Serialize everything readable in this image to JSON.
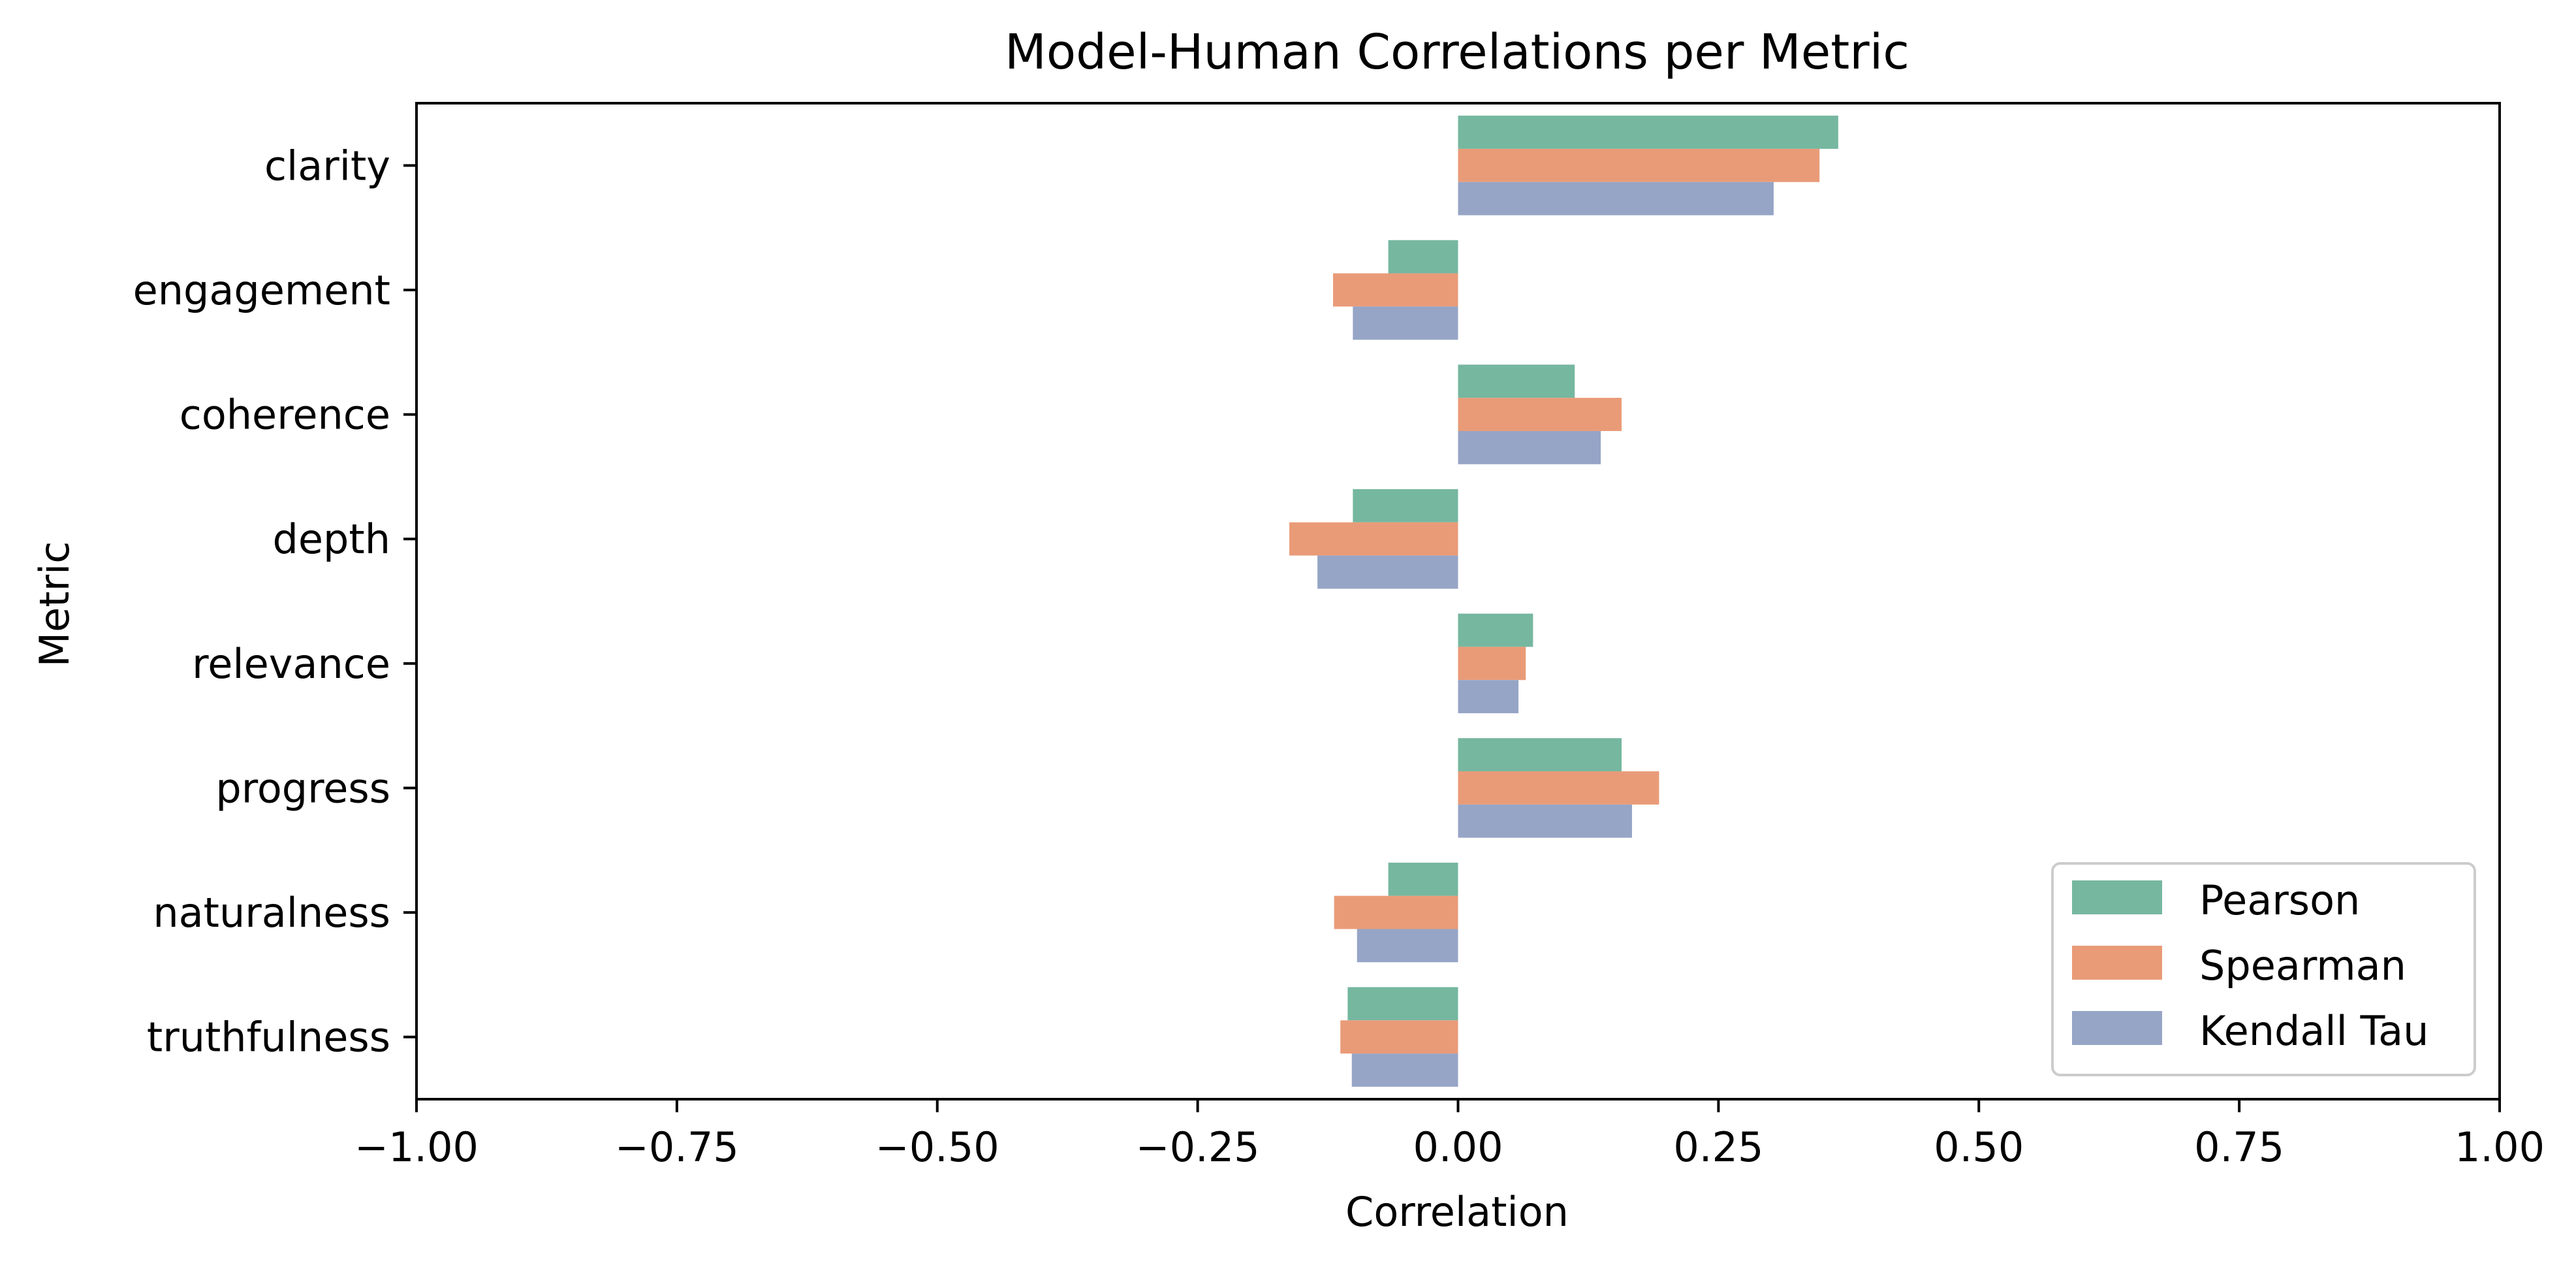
{
  "chart_data": {
    "type": "bar",
    "orientation": "horizontal",
    "title": "Model-Human Correlations per Metric",
    "xlabel": "Correlation",
    "ylabel": "Metric",
    "xlim": [
      -1.0,
      1.0
    ],
    "xticks": [
      "−1.00",
      "−0.75",
      "−0.50",
      "−0.25",
      "0.00",
      "0.25",
      "0.50",
      "0.75",
      "1.00"
    ],
    "xtick_values": [
      -1.0,
      -0.75,
      -0.5,
      -0.25,
      0.0,
      0.25,
      0.5,
      0.75,
      1.0
    ],
    "grid": false,
    "legend_position": "bottom-right",
    "categories": [
      "clarity",
      "engagement",
      "coherence",
      "depth",
      "relevance",
      "progress",
      "naturalness",
      "truthfulness"
    ],
    "series": [
      {
        "name": "Pearson",
        "color": "#76b7a0",
        "values": [
          0.365,
          -0.067,
          0.112,
          -0.101,
          0.072,
          0.157,
          -0.067,
          -0.106
        ]
      },
      {
        "name": "Spearman",
        "color": "#e99b78",
        "values": [
          0.347,
          -0.12,
          0.157,
          -0.162,
          0.065,
          0.193,
          -0.119,
          -0.113
        ]
      },
      {
        "name": "Kendall Tau",
        "color": "#96a5c6",
        "values": [
          0.303,
          -0.101,
          0.137,
          -0.135,
          0.058,
          0.167,
          -0.097,
          -0.102
        ]
      }
    ]
  }
}
